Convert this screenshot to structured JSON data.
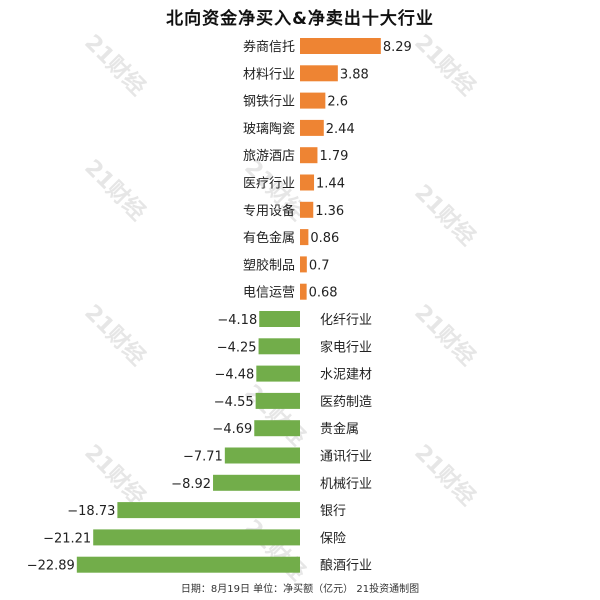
{
  "title": "北向资金净买入&净卖出十大行业",
  "footer": "日期：8月19日  单位：净买额（亿元）  21投资通制图",
  "watermark_text": "21财经",
  "colors": {
    "positive": "#ee8433",
    "negative": "#72ad4a"
  },
  "chart_data": {
    "type": "bar",
    "orientation": "horizontal",
    "categories": [
      "券商信托",
      "材料行业",
      "钢铁行业",
      "玻璃陶瓷",
      "旅游酒店",
      "医疗行业",
      "专用设备",
      "有色金属",
      "塑胶制品",
      "电信运营",
      "化纤行业",
      "家电行业",
      "水泥建材",
      "医药制造",
      "贵金属",
      "通讯行业",
      "机械行业",
      "银行",
      "保险",
      "酿酒行业"
    ],
    "values": [
      8.29,
      3.88,
      2.6,
      2.44,
      1.79,
      1.44,
      1.36,
      0.86,
      0.7,
      0.68,
      -4.18,
      -4.25,
      -4.48,
      -4.55,
      -4.69,
      -7.71,
      -8.92,
      -18.73,
      -21.21,
      -22.89
    ],
    "value_labels": [
      "8.29",
      "3.88",
      "2.6",
      "2.44",
      "1.79",
      "1.44",
      "1.36",
      "0.86",
      "0.7",
      "0.68",
      "−4.18",
      "−4.25",
      "−4.48",
      "−4.55",
      "−4.69",
      "−7.71",
      "−8.92",
      "−18.73",
      "−21.21",
      "−22.89"
    ],
    "title": "北向资金净买入&净卖出十大行业",
    "xlabel": "",
    "ylabel": "",
    "xlim": [
      -22.89,
      8.29
    ],
    "grid": false,
    "legend": "none"
  }
}
